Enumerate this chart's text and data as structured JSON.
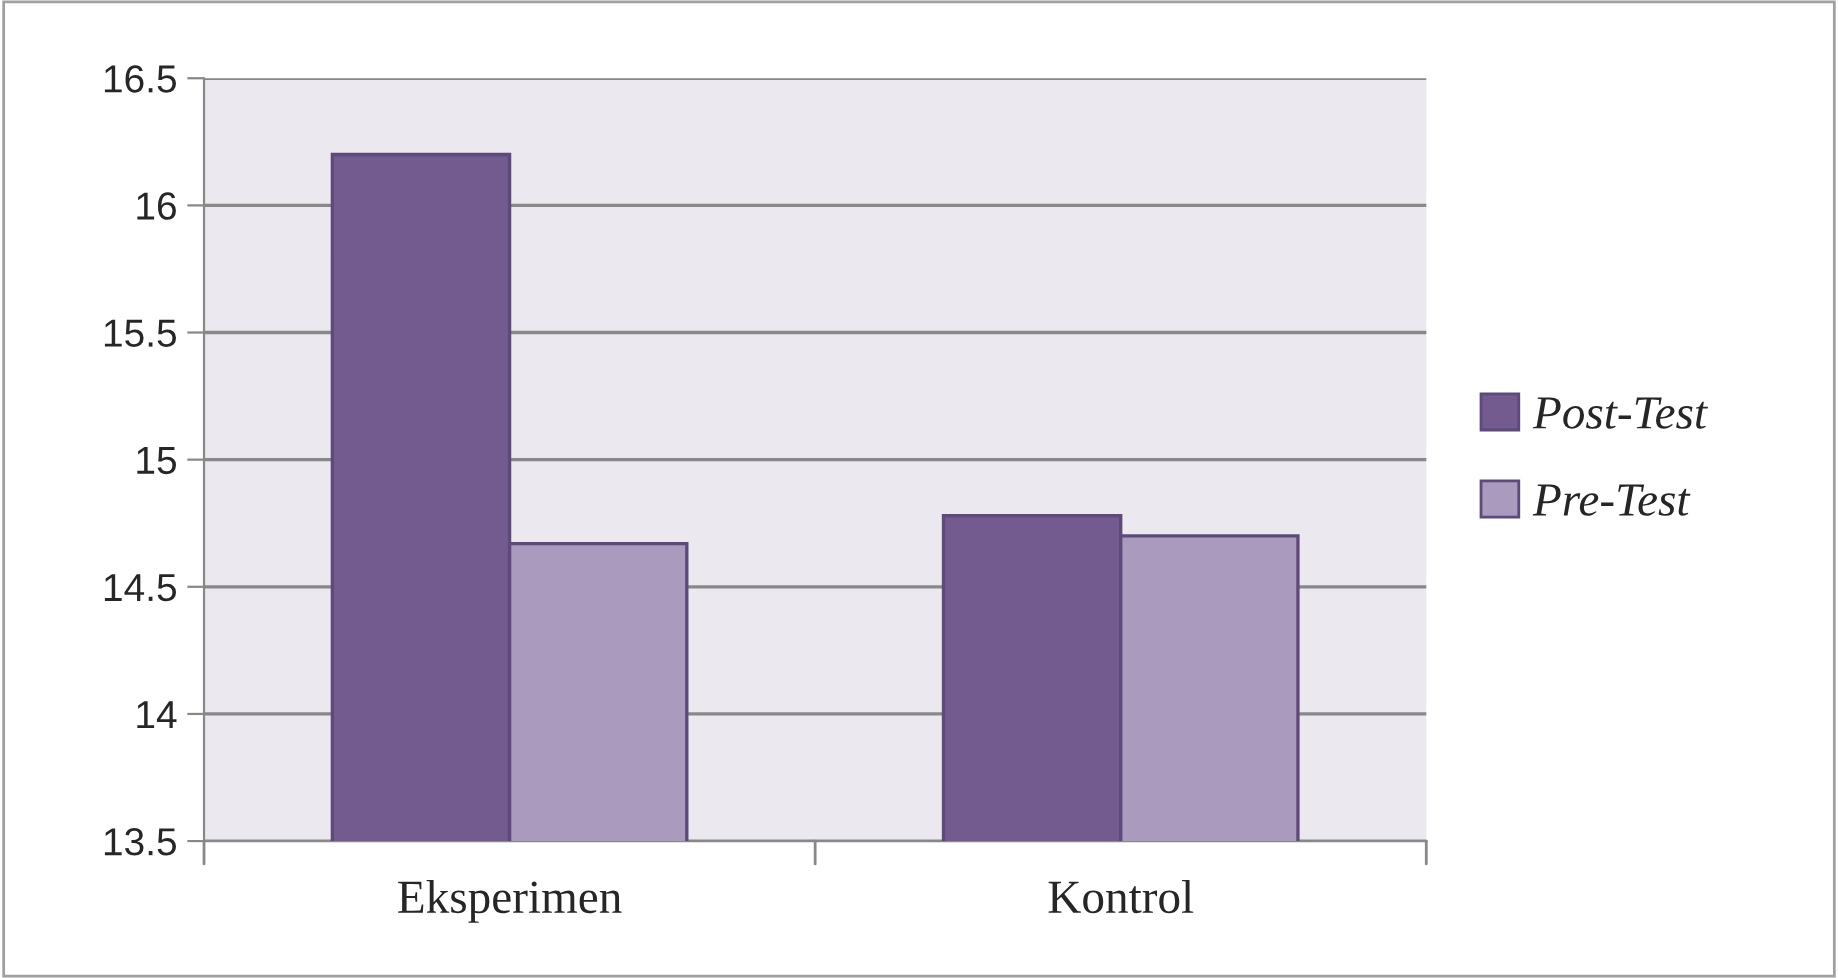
{
  "chart_data": {
    "type": "bar",
    "categories": [
      "Eksperimen",
      "Kontrol"
    ],
    "series": [
      {
        "name": "Post-Test",
        "color": "#735a8f",
        "values": [
          16.2,
          14.78
        ]
      },
      {
        "name": "Pre-Test",
        "color": "#aa9abd",
        "values": [
          14.67,
          14.7
        ]
      }
    ],
    "ylim": [
      13.5,
      16.5
    ],
    "yticks": [
      13.5,
      14,
      14.5,
      15,
      15.5,
      16,
      16.5
    ],
    "grid": "y",
    "legend": "right"
  }
}
